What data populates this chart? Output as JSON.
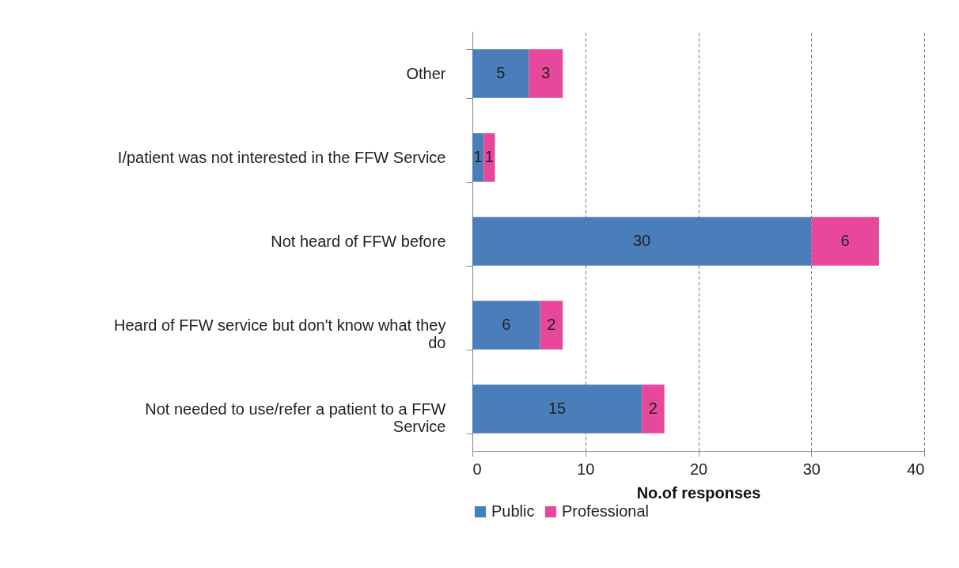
{
  "chart_data": {
    "type": "bar",
    "orientation": "horizontal",
    "stacked": true,
    "xlabel": "No.of responses",
    "categories": [
      "Other",
      "I/patient was not interested in the FFW Service",
      "Not heard of FFW before",
      "Heard of FFW service but don't know what they do",
      "Not needed to use/refer a patient to a FFW Service"
    ],
    "series": [
      {
        "name": "Public",
        "color": "#4a7ebb",
        "values": [
          5,
          1,
          30,
          6,
          15
        ]
      },
      {
        "name": "Professional",
        "color": "#e8489b",
        "values": [
          3,
          1,
          6,
          2,
          2
        ]
      }
    ],
    "xlim": [
      0,
      40
    ],
    "xticks": [
      0,
      10,
      20,
      30,
      40
    ],
    "grid": "x",
    "legend": "bottom",
    "data_labels": true
  }
}
